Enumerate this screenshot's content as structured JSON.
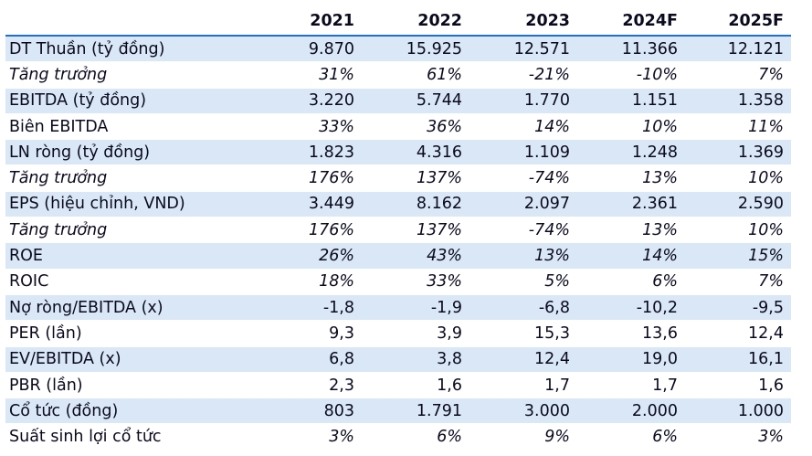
{
  "header": {
    "label": "",
    "years": [
      "2021",
      "2022",
      "2023",
      "2024F",
      "2025F"
    ]
  },
  "rows": [
    {
      "label": "DT Thuần (tỷ đồng)",
      "values": [
        "9.870",
        "15.925",
        "12.571",
        "11.366",
        "12.121"
      ],
      "italic": false,
      "shaded": true
    },
    {
      "label": "Tăng trưởng",
      "values": [
        "31%",
        "61%",
        "-21%",
        "-10%",
        "7%"
      ],
      "italic": true,
      "shaded": false
    },
    {
      "label": "EBITDA (tỷ đồng)",
      "values": [
        "3.220",
        "5.744",
        "1.770",
        "1.151",
        "1.358"
      ],
      "italic": false,
      "shaded": true
    },
    {
      "label": "Biên EBITDA",
      "values": [
        "33%",
        "36%",
        "14%",
        "10%",
        "11%"
      ],
      "italic_values": true,
      "italic": false,
      "shaded": false
    },
    {
      "label": "LN ròng (tỷ đồng)",
      "values": [
        "1.823",
        "4.316",
        "1.109",
        "1.248",
        "1.369"
      ],
      "italic": false,
      "shaded": true
    },
    {
      "label": "Tăng trưởng",
      "values": [
        "176%",
        "137%",
        "-74%",
        "13%",
        "10%"
      ],
      "italic": true,
      "shaded": false
    },
    {
      "label": "EPS (hiệu chỉnh, VND)",
      "values": [
        "3.449",
        "8.162",
        "2.097",
        "2.361",
        "2.590"
      ],
      "italic": false,
      "shaded": true
    },
    {
      "label": "Tăng trưởng",
      "values": [
        "176%",
        "137%",
        "-74%",
        "13%",
        "10%"
      ],
      "italic": true,
      "shaded": false
    },
    {
      "label": "ROE",
      "values": [
        "26%",
        "43%",
        "13%",
        "14%",
        "15%"
      ],
      "italic_values": true,
      "italic": false,
      "shaded": true
    },
    {
      "label": "ROIC",
      "values": [
        "18%",
        "33%",
        "5%",
        "6%",
        "7%"
      ],
      "italic_values": true,
      "italic": false,
      "shaded": false
    },
    {
      "label": "Nợ ròng/EBITDA (x)",
      "values": [
        "-1,8",
        "-1,9",
        "-6,8",
        "-10,2",
        "-9,5"
      ],
      "italic": false,
      "shaded": true
    },
    {
      "label": "PER (lần)",
      "values": [
        "9,3",
        "3,9",
        "15,3",
        "13,6",
        "12,4"
      ],
      "italic": false,
      "shaded": false
    },
    {
      "label": "EV/EBITDA (x)",
      "values": [
        "6,8",
        "3,8",
        "12,4",
        "19,0",
        "16,1"
      ],
      "italic": false,
      "shaded": true
    },
    {
      "label": "PBR (lần)",
      "values": [
        "2,3",
        "1,6",
        "1,7",
        "1,7",
        "1,6"
      ],
      "italic": false,
      "shaded": false
    },
    {
      "label": "Cổ tức (đồng)",
      "values": [
        "803",
        "1.791",
        "3.000",
        "2.000",
        "1.000"
      ],
      "italic": false,
      "shaded": true
    },
    {
      "label": "Suất sinh lợi cổ tức",
      "values": [
        "3%",
        "6%",
        "9%",
        "6%",
        "3%"
      ],
      "italic_values": true,
      "italic": false,
      "shaded": false
    }
  ]
}
